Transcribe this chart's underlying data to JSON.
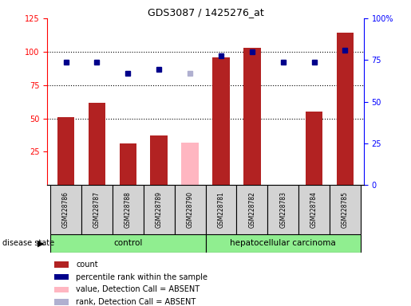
{
  "title": "GDS3087 / 1425276_at",
  "samples": [
    "GSM228786",
    "GSM228787",
    "GSM228788",
    "GSM228789",
    "GSM228790",
    "GSM228781",
    "GSM228782",
    "GSM228783",
    "GSM228784",
    "GSM228785"
  ],
  "count_values": [
    51,
    62,
    31,
    37,
    null,
    96,
    103,
    null,
    55,
    114
  ],
  "count_absent": [
    null,
    null,
    null,
    null,
    32,
    null,
    null,
    null,
    null,
    null
  ],
  "rank_values": [
    92,
    92,
    84,
    87,
    null,
    97,
    100,
    92,
    92,
    101
  ],
  "rank_absent": [
    null,
    null,
    null,
    null,
    84,
    null,
    null,
    null,
    null,
    null
  ],
  "left_ylim": [
    0,
    125
  ],
  "right_ylim": [
    0,
    100
  ],
  "left_yticks": [
    25,
    50,
    75,
    100,
    125
  ],
  "right_yticks": [
    0,
    25,
    50,
    75,
    100
  ],
  "right_yticklabels": [
    "0",
    "25",
    "50",
    "75",
    "100%"
  ],
  "bar_color": "#b22222",
  "bar_absent_color": "#ffb6c1",
  "rank_color": "#00008b",
  "rank_absent_color": "#b0b0d0",
  "control_bg": "#90ee90",
  "cancer_bg": "#90ee90",
  "sample_box_color": "#d3d3d3",
  "legend_items": [
    {
      "label": "count",
      "color": "#b22222"
    },
    {
      "label": "percentile rank within the sample",
      "color": "#00008b"
    },
    {
      "label": "value, Detection Call = ABSENT",
      "color": "#ffb6c1"
    },
    {
      "label": "rank, Detection Call = ABSENT",
      "color": "#b0b0d0"
    }
  ]
}
